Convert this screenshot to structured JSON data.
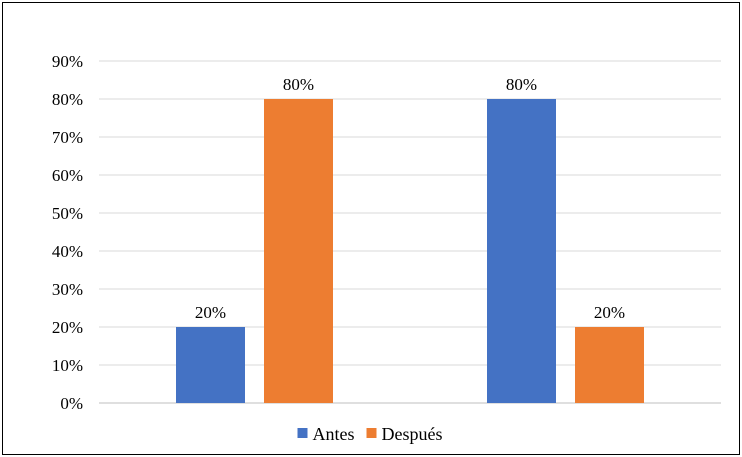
{
  "chart_data": {
    "type": "bar",
    "categories": [
      "",
      ""
    ],
    "series": [
      {
        "name": "Antes",
        "color": "#4472C4",
        "values": [
          20,
          80
        ]
      },
      {
        "name": "Después",
        "color": "#ED7D31",
        "values": [
          80,
          20
        ]
      }
    ],
    "data_labels": [
      [
        "20%",
        "80%"
      ],
      [
        "80%",
        "20%"
      ]
    ],
    "ylim": [
      0,
      90
    ],
    "yticks": [
      "0%",
      "10%",
      "20%",
      "30%",
      "40%",
      "50%",
      "60%",
      "70%",
      "80%",
      "90%"
    ],
    "title": "",
    "xlabel": "",
    "ylabel": "",
    "grid": true,
    "legend_position": "bottom"
  }
}
